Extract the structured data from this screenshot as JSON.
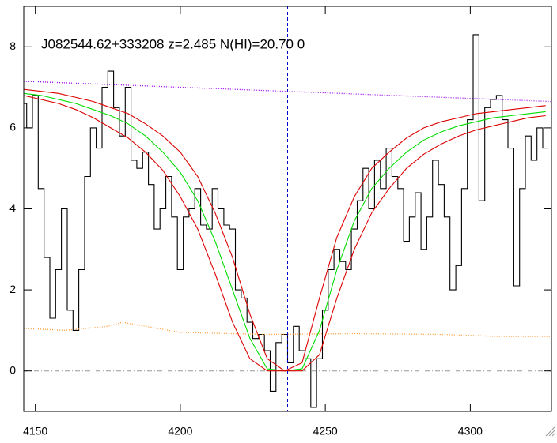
{
  "chart_data": {
    "type": "line",
    "title": "J082544.62+333208 z=2.485 N(HI)=20.70 0",
    "xlim": [
      4146,
      4328
    ],
    "ylim": [
      -1,
      9
    ],
    "xticks": [
      4150,
      4200,
      4250,
      4300
    ],
    "yticks": [
      0,
      2,
      4,
      6,
      8
    ],
    "series": [
      {
        "color": "#000000",
        "style": "steps",
        "x": [
          4146,
          4148,
          4150,
          4152,
          4154,
          4156,
          4158,
          4160,
          4162,
          4164,
          4166,
          4168,
          4170,
          4172,
          4174,
          4176,
          4178,
          4180,
          4182,
          4184,
          4186,
          4188,
          4190,
          4192,
          4194,
          4196,
          4198,
          4200,
          4202,
          4204,
          4206,
          4208,
          4210,
          4212,
          4214,
          4216,
          4218,
          4220,
          4222,
          4224,
          4226,
          4228,
          4230,
          4232,
          4234,
          4236,
          4238,
          4240,
          4242,
          4244,
          4246,
          4248,
          4250,
          4252,
          4254,
          4256,
          4258,
          4260,
          4262,
          4264,
          4266,
          4268,
          4270,
          4272,
          4274,
          4276,
          4278,
          4280,
          4282,
          4284,
          4286,
          4288,
          4290,
          4292,
          4294,
          4296,
          4298,
          4300,
          4302,
          4304,
          4306,
          4308,
          4310,
          4312,
          4314,
          4316,
          4318,
          4320,
          4322,
          4324,
          4326
        ],
        "values": [
          6.6,
          6.0,
          6.8,
          4.5,
          2.8,
          1.3,
          2.5,
          4.0,
          1.5,
          1.0,
          2.5,
          4.8,
          6.0,
          5.5,
          7.0,
          7.4,
          6.5,
          5.8,
          7.0,
          5.2,
          5.0,
          5.4,
          4.6,
          3.5,
          4.0,
          4.8,
          3.8,
          2.5,
          3.8,
          4.0,
          4.5,
          3.6,
          3.5,
          4.5,
          4.0,
          3.6,
          3.5,
          2.0,
          1.8,
          1.2,
          0.8,
          0.9,
          0.5,
          -0.5,
          0.7,
          0.9,
          0.2,
          1.1,
          0.5,
          0.3,
          -0.9,
          0.3,
          1.5,
          2.5,
          3.0,
          2.7,
          2.5,
          3.5,
          4.2,
          5.0,
          4.0,
          5.2,
          4.5,
          5.5,
          4.8,
          4.5,
          3.2,
          3.8,
          4.4,
          3.0,
          3.8,
          5.2,
          4.6,
          3.8,
          2.0,
          2.6,
          4.5,
          6.2,
          8.3,
          4.2,
          6.5,
          6.7,
          6.8,
          6.2,
          5.5,
          2.1,
          4.5,
          5.8,
          5.2,
          6.0,
          5.5
        ]
      },
      {
        "color": "#00dd00",
        "style": "solid",
        "x": [
          4146,
          4152,
          4158,
          4164,
          4170,
          4176,
          4182,
          4188,
          4194,
          4200,
          4206,
          4212,
          4218,
          4224,
          4230,
          4236,
          4242,
          4248,
          4254,
          4260,
          4266,
          4272,
          4278,
          4284,
          4290,
          4296,
          4302,
          4308,
          4314,
          4320,
          4326
        ],
        "values": [
          6.85,
          6.8,
          6.7,
          6.6,
          6.45,
          6.3,
          6.1,
          5.8,
          5.4,
          4.9,
          4.2,
          3.2,
          2.0,
          0.8,
          0.05,
          0,
          0.05,
          1.0,
          2.5,
          3.7,
          4.5,
          5.0,
          5.4,
          5.7,
          5.9,
          6.05,
          6.15,
          6.25,
          6.3,
          6.35,
          6.4
        ]
      },
      {
        "color": "#dd0000",
        "style": "solid",
        "x": [
          4146,
          4152,
          4158,
          4164,
          4170,
          4176,
          4182,
          4188,
          4194,
          4200,
          4206,
          4212,
          4218,
          4224,
          4230,
          4236,
          4242,
          4248,
          4254,
          4260,
          4266,
          4272,
          4278,
          4284,
          4290,
          4296,
          4302,
          4308,
          4314,
          4320,
          4326
        ],
        "values": [
          6.95,
          6.9,
          6.85,
          6.75,
          6.65,
          6.5,
          6.35,
          6.1,
          5.8,
          5.4,
          4.8,
          3.9,
          2.8,
          1.4,
          0.3,
          0,
          0.2,
          1.8,
          3.3,
          4.3,
          5.0,
          5.4,
          5.75,
          6.0,
          6.15,
          6.25,
          6.35,
          6.4,
          6.45,
          6.5,
          6.55
        ]
      },
      {
        "color": "#dd0000",
        "style": "solid",
        "x": [
          4146,
          4152,
          4158,
          4164,
          4170,
          4176,
          4182,
          4188,
          4194,
          4200,
          4206,
          4212,
          4218,
          4224,
          4230,
          4236,
          4242,
          4248,
          4254,
          4260,
          4266,
          4272,
          4278,
          4284,
          4290,
          4296,
          4302,
          4308,
          4314,
          4320,
          4326
        ],
        "values": [
          6.8,
          6.7,
          6.6,
          6.45,
          6.25,
          6.0,
          5.75,
          5.4,
          4.95,
          4.3,
          3.5,
          2.4,
          1.2,
          0.3,
          0,
          0,
          0,
          0.4,
          1.8,
          3.0,
          3.9,
          4.5,
          5.0,
          5.35,
          5.6,
          5.8,
          5.95,
          6.05,
          6.15,
          6.25,
          6.3
        ]
      },
      {
        "color": "#9900ee",
        "style": "dotted",
        "x": [
          4146,
          4328
        ],
        "values": [
          7.15,
          6.65
        ]
      },
      {
        "color": "#ff9933",
        "style": "dotted",
        "x": [
          4146,
          4160,
          4175,
          4180,
          4200,
          4230,
          4260,
          4290,
          4310,
          4328
        ],
        "values": [
          1.05,
          1.0,
          1.1,
          1.2,
          0.95,
          0.9,
          0.92,
          0.9,
          0.85,
          0.85
        ]
      }
    ],
    "vlines": [
      {
        "value": 4237,
        "color": "#0000cc",
        "style": "dashed"
      }
    ],
    "hlines": [
      {
        "value": 0,
        "color": "#999999",
        "style": "dashdot"
      }
    ]
  }
}
